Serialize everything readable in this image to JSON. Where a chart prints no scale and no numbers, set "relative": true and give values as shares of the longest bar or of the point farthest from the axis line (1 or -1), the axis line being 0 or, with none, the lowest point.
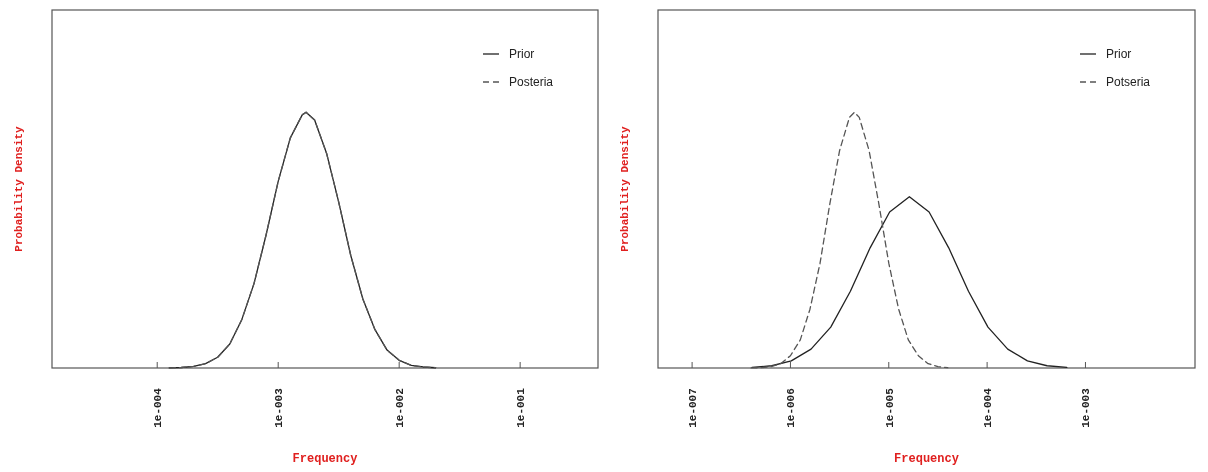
{
  "chart_data": [
    {
      "type": "line",
      "relative": true,
      "xlabel": "Frequency",
      "ylabel": "Probability Density",
      "log": "x",
      "legend": "top right",
      "xlim": [
        1.35e-05,
        0.44
      ],
      "xticks": [
        {
          "value": 0.0001,
          "label": "1e-004"
        },
        {
          "value": 0.001,
          "label": "1e-003"
        },
        {
          "value": 0.01,
          "label": "1e-002"
        },
        {
          "value": 0.1,
          "label": "1e-001"
        }
      ],
      "x": [
        0.000126,
        0.000158,
        0.0002,
        0.000251,
        0.000316,
        0.000398,
        0.000501,
        0.000631,
        0.000794,
        0.001,
        0.00126,
        0.00158,
        0.0017,
        0.002,
        0.00251,
        0.00316,
        0.00398,
        0.00501,
        0.00631,
        0.00794,
        0.01,
        0.0126,
        0.0158,
        0.02
      ],
      "series": [
        {
          "name": "Prior",
          "color": "#222222",
          "line_style": "solid",
          "values": [
            0.0005,
            0.002,
            0.006,
            0.017,
            0.042,
            0.094,
            0.19,
            0.33,
            0.52,
            0.73,
            0.9,
            0.99,
            1,
            0.97,
            0.84,
            0.65,
            0.44,
            0.27,
            0.15,
            0.07,
            0.03,
            0.01,
            0.004,
            0.001
          ]
        },
        {
          "name": "Posteria",
          "color": "#555555",
          "line_style": "dashed",
          "values": [
            0.0005,
            0.002,
            0.006,
            0.017,
            0.042,
            0.094,
            0.19,
            0.33,
            0.52,
            0.73,
            0.9,
            0.99,
            1,
            0.97,
            0.84,
            0.65,
            0.44,
            0.27,
            0.15,
            0.07,
            0.03,
            0.01,
            0.004,
            0.001
          ]
        }
      ]
    },
    {
      "type": "line",
      "relative": true,
      "xlabel": "Frequency",
      "ylabel": "Probability Density",
      "log": "x",
      "legend": "top right",
      "xlim": [
        4.5e-08,
        0.013
      ],
      "xticks": [
        {
          "value": 1e-07,
          "label": "1e-007"
        },
        {
          "value": 1e-06,
          "label": "1e-006"
        },
        {
          "value": 1e-05,
          "label": "1e-005"
        },
        {
          "value": 0.0001,
          "label": "1e-004"
        },
        {
          "value": 0.001,
          "label": "1e-003"
        }
      ],
      "series": [
        {
          "name": "Prior",
          "color": "#222222",
          "line_style": "solid",
          "x": [
            4.07e-07,
            6.46e-07,
            1.02e-06,
            1.62e-06,
            2.57e-06,
            4.07e-06,
            6.46e-06,
            1.02e-05,
            1.62e-05,
            2.57e-05,
            4.07e-05,
            6.46e-05,
            0.000102,
            0.000162,
            0.000257,
            0.000407,
            0.000646
          ],
          "values": [
            0.0024,
            0.0088,
            0.028,
            0.074,
            0.16,
            0.3,
            0.47,
            0.61,
            0.67,
            0.61,
            0.47,
            0.3,
            0.16,
            0.074,
            0.028,
            0.0088,
            0.0024
          ]
        },
        {
          "name": "Potseria",
          "color": "#555555",
          "line_style": "dashed",
          "x": [
            3.98e-07,
            5.01e-07,
            6.31e-07,
            7.94e-07,
            1e-06,
            1.26e-06,
            1.58e-06,
            2e-06,
            2.51e-06,
            3.16e-06,
            3.98e-06,
            4.47e-06,
            5.01e-06,
            6.31e-06,
            7.94e-06,
            1e-05,
            1.26e-05,
            1.58e-05,
            2e-05,
            2.51e-05,
            3.16e-05,
            3.98e-05
          ],
          "values": [
            0.0004,
            0.0015,
            0.0055,
            0.017,
            0.048,
            0.11,
            0.23,
            0.41,
            0.64,
            0.85,
            0.98,
            1,
            0.98,
            0.85,
            0.64,
            0.41,
            0.23,
            0.11,
            0.048,
            0.017,
            0.0055,
            0.0015
          ]
        }
      ]
    }
  ]
}
